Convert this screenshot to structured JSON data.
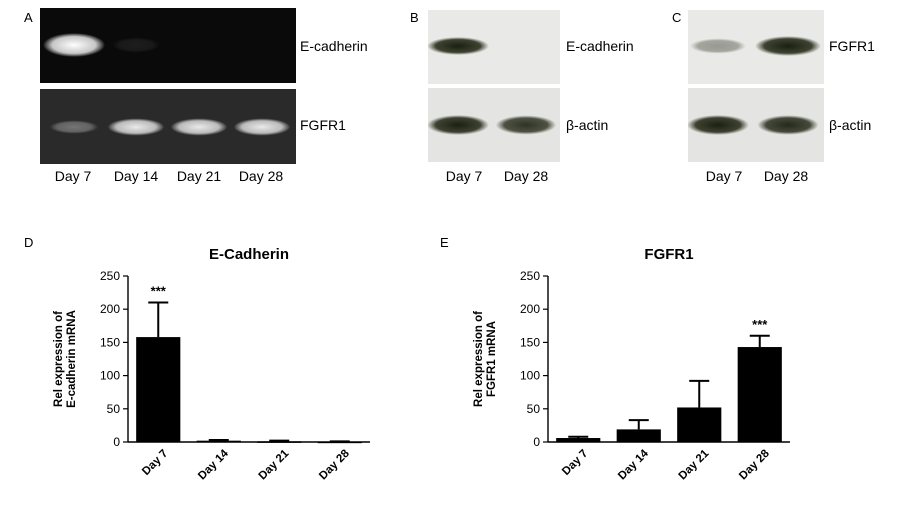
{
  "panels": {
    "A": {
      "letter": "A",
      "top_label": "E-cadherin",
      "bottom_label": "FGFR1",
      "lanes": [
        "Day 7",
        "Day 14",
        "Day 21",
        "Day 28"
      ],
      "top_intensity": [
        1.0,
        0.08,
        0.0,
        0.0
      ],
      "bottom_intensity": [
        0.35,
        0.9,
        0.9,
        0.9
      ]
    },
    "B": {
      "letter": "B",
      "top_label": "E-cadherin",
      "bottom_label": "β-actin",
      "lanes": [
        "Day 7",
        "Day 28"
      ],
      "top_intensity": [
        1.0,
        0.0
      ],
      "bottom_intensity": [
        1.0,
        0.9
      ]
    },
    "C": {
      "letter": "C",
      "top_label": "FGFR1",
      "bottom_label": "β-actin",
      "lanes": [
        "Day 7",
        "Day 28"
      ],
      "top_intensity": [
        0.4,
        1.0
      ],
      "bottom_intensity": [
        1.0,
        0.95
      ]
    }
  },
  "chart_data": [
    {
      "panel": "D",
      "type": "bar",
      "title": "E-Cadherin",
      "ylabel": "Rel expression of E-cadherin mRNA",
      "categories": [
        "Day 7",
        "Day 14",
        "Day 21",
        "Day 28"
      ],
      "values": [
        158,
        2,
        1,
        0.5
      ],
      "errors": [
        52,
        1,
        1,
        0.5
      ],
      "annotations": [
        "***",
        "",
        "",
        ""
      ],
      "ylim": [
        0,
        250
      ],
      "yticks": [
        0,
        50,
        100,
        150,
        200,
        250
      ]
    },
    {
      "panel": "E",
      "type": "bar",
      "title": "FGFR1",
      "ylabel": "Rel expression of FGFR1 mRNA",
      "categories": [
        "Day 7",
        "Day 14",
        "Day 21",
        "Day 28"
      ],
      "values": [
        6,
        19,
        52,
        143
      ],
      "errors": [
        2,
        14,
        40,
        17
      ],
      "annotations": [
        "",
        "",
        "",
        "***"
      ],
      "ylim": [
        0,
        250
      ],
      "yticks": [
        0,
        50,
        100,
        150,
        200,
        250
      ]
    }
  ]
}
